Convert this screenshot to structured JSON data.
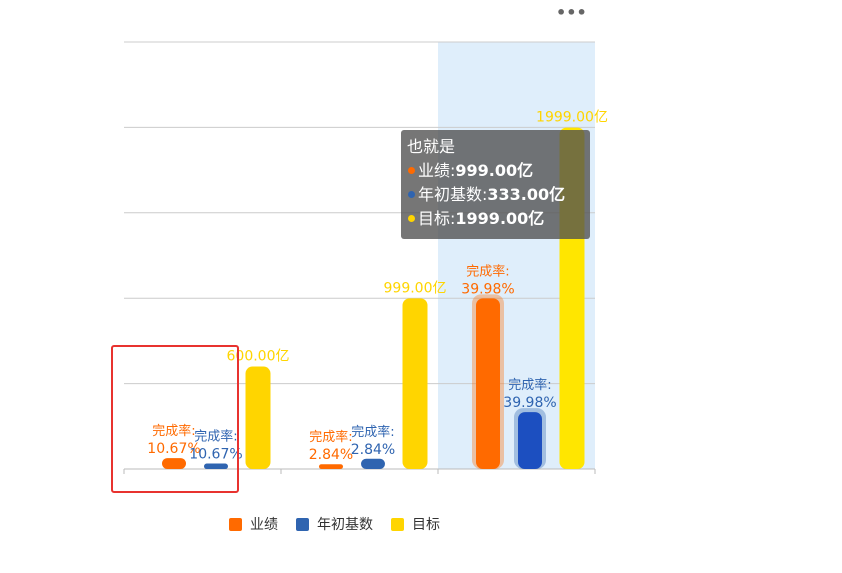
{
  "toolbar": {
    "more_icon": "more-horizontal-icon",
    "more_label": "•••"
  },
  "tooltip": {
    "title": "也就是",
    "rows": [
      {
        "name": "业绩",
        "value": "999.00亿",
        "color": "#ff6a00"
      },
      {
        "name": "年初基数",
        "value": "333.00亿",
        "color": "#2f64b0"
      },
      {
        "name": "目标",
        "value": "1999.00亿",
        "color": "#ffd500"
      }
    ]
  },
  "chart_data": {
    "type": "bar",
    "ylim": [
      0,
      2500
    ],
    "grid": true,
    "legend_position": "bottom",
    "highlighted_category_index": 2,
    "series": [
      {
        "name": "业绩",
        "color": "#ff6a00",
        "values": [
          64,
          28,
          999
        ],
        "labels": [
          "完成率:\n10.67%",
          "完成率:\n2.84%",
          "完成率:\n39.98%"
        ]
      },
      {
        "name": "年初基数",
        "color": "#2f64b0",
        "values": [
          32,
          60,
          333
        ],
        "labels": [
          "完成率:\n10.67%",
          "完成率:\n2.84%",
          "完成率:\n39.98%"
        ]
      },
      {
        "name": "目标",
        "color": "#ffd500",
        "values": [
          600,
          999,
          1999
        ],
        "labels": [
          "600.00亿",
          "999.00亿",
          "1999.00亿"
        ]
      }
    ]
  }
}
